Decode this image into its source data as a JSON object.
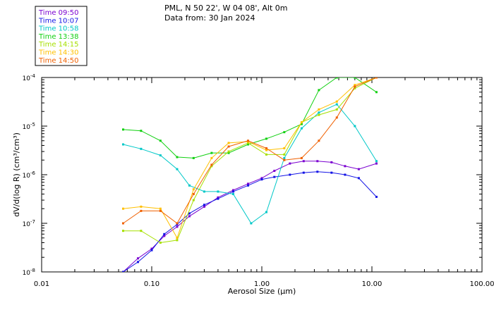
{
  "header": {
    "line1": "PML, N 50 22', W 04 08', Alt 0m",
    "line2": "Data from: 30 Jan 2024"
  },
  "chart_data": {
    "type": "line",
    "xlabel": "Aerosol Size (µm)",
    "ylabel": "dV/d(log R) (cm³/cm³)",
    "xscale": "log",
    "yscale": "log",
    "xlim": [
      0.01,
      100
    ],
    "ylim": [
      1e-08,
      0.0001
    ],
    "grid": false,
    "legend_position": "top-left",
    "x_ticks": [
      {
        "value": 0.01,
        "label": "0.01"
      },
      {
        "value": 0.1,
        "label": "0.10"
      },
      {
        "value": 1,
        "label": "1.00"
      },
      {
        "value": 10,
        "label": "10.00"
      },
      {
        "value": 100,
        "label": "100.00"
      }
    ],
    "y_ticks": [
      {
        "value": 1e-08,
        "base": "10",
        "exp": "-8"
      },
      {
        "value": 1e-07,
        "base": "10",
        "exp": "-7"
      },
      {
        "value": 1e-06,
        "base": "10",
        "exp": "-6"
      },
      {
        "value": 1e-05,
        "base": "10",
        "exp": "-5"
      },
      {
        "value": 0.0001,
        "base": "10",
        "exp": "-4"
      }
    ],
    "series": [
      {
        "name": "Time 09:50",
        "color": "#7a00d0",
        "points": [
          [
            0.055,
            1e-08
          ],
          [
            0.075,
            1.9e-08
          ],
          [
            0.1,
            3e-08
          ],
          [
            0.13,
            5.5e-08
          ],
          [
            0.17,
            8.5e-08
          ],
          [
            0.22,
            1.4e-07
          ],
          [
            0.3,
            2.2e-07
          ],
          [
            0.4,
            3.4e-07
          ],
          [
            0.55,
            4.8e-07
          ],
          [
            0.75,
            6.5e-07
          ],
          [
            1.0,
            8.5e-07
          ],
          [
            1.3,
            1.2e-06
          ],
          [
            1.8,
            1.7e-06
          ],
          [
            2.4,
            1.9e-06
          ],
          [
            3.2,
            1.9e-06
          ],
          [
            4.3,
            1.8e-06
          ],
          [
            5.7,
            1.5e-06
          ],
          [
            7.6,
            1.3e-06
          ],
          [
            11.0,
            1.7e-06
          ]
        ]
      },
      {
        "name": "Time 10:07",
        "color": "#1414e6",
        "points": [
          [
            0.055,
            1e-08
          ],
          [
            0.075,
            1.6e-08
          ],
          [
            0.1,
            2.8e-08
          ],
          [
            0.13,
            6e-08
          ],
          [
            0.17,
            9.5e-08
          ],
          [
            0.22,
            1.6e-07
          ],
          [
            0.3,
            2.4e-07
          ],
          [
            0.4,
            3.2e-07
          ],
          [
            0.55,
            4.5e-07
          ],
          [
            0.75,
            6e-07
          ],
          [
            1.0,
            8e-07
          ],
          [
            1.3,
            9e-07
          ],
          [
            1.8,
            1e-06
          ],
          [
            2.4,
            1.1e-06
          ],
          [
            3.2,
            1.15e-06
          ],
          [
            4.3,
            1.1e-06
          ],
          [
            5.7,
            1e-06
          ],
          [
            7.6,
            8.5e-07
          ],
          [
            11.0,
            3.5e-07
          ]
        ]
      },
      {
        "name": "Time 10:58",
        "color": "#00c8c8",
        "points": [
          [
            0.055,
            4.2e-06
          ],
          [
            0.08,
            3.4e-06
          ],
          [
            0.12,
            2.5e-06
          ],
          [
            0.17,
            1.3e-06
          ],
          [
            0.22,
            6e-07
          ],
          [
            0.3,
            4.5e-07
          ],
          [
            0.4,
            4.5e-07
          ],
          [
            0.55,
            4e-07
          ],
          [
            0.8,
            1e-07
          ],
          [
            1.1,
            1.7e-07
          ],
          [
            1.6,
            2.2e-06
          ],
          [
            2.3,
            9e-06
          ],
          [
            3.3,
            1.9e-05
          ],
          [
            4.8,
            2.8e-05
          ],
          [
            7.0,
            1e-05
          ],
          [
            11.0,
            1.9e-06
          ]
        ]
      },
      {
        "name": "Time 13:38",
        "color": "#10d010",
        "points": [
          [
            0.055,
            8.5e-06
          ],
          [
            0.08,
            8e-06
          ],
          [
            0.12,
            5e-06
          ],
          [
            0.17,
            2.3e-06
          ],
          [
            0.24,
            2.2e-06
          ],
          [
            0.35,
            2.8e-06
          ],
          [
            0.5,
            2.8e-06
          ],
          [
            0.75,
            4.2e-06
          ],
          [
            1.1,
            5.5e-06
          ],
          [
            1.6,
            7.5e-06
          ],
          [
            2.3,
            1.1e-05
          ],
          [
            3.3,
            5.5e-05
          ],
          [
            4.8,
            0.0001
          ],
          [
            7.0,
            0.0001
          ],
          [
            11.0,
            5e-05
          ]
        ]
      },
      {
        "name": "Time 14:15",
        "color": "#a6e000",
        "points": [
          [
            0.055,
            7e-08
          ],
          [
            0.08,
            7e-08
          ],
          [
            0.12,
            4e-08
          ],
          [
            0.17,
            4.5e-08
          ],
          [
            0.24,
            3e-07
          ],
          [
            0.35,
            1.5e-06
          ],
          [
            0.5,
            3e-06
          ],
          [
            0.75,
            4.5e-06
          ],
          [
            1.1,
            2.6e-06
          ],
          [
            1.6,
            2.6e-06
          ],
          [
            2.3,
            1.2e-05
          ],
          [
            3.3,
            1.7e-05
          ],
          [
            4.8,
            2.2e-05
          ],
          [
            7.0,
            6e-05
          ],
          [
            11.0,
            0.0001
          ]
        ]
      },
      {
        "name": "Time 14:30",
        "color": "#ffc000",
        "points": [
          [
            0.055,
            2e-07
          ],
          [
            0.08,
            2.2e-07
          ],
          [
            0.12,
            2e-07
          ],
          [
            0.17,
            5e-08
          ],
          [
            0.24,
            5e-07
          ],
          [
            0.35,
            2.2e-06
          ],
          [
            0.5,
            4.5e-06
          ],
          [
            0.75,
            4.8e-06
          ],
          [
            1.1,
            3.2e-06
          ],
          [
            1.6,
            3.5e-06
          ],
          [
            2.3,
            1.2e-05
          ],
          [
            3.3,
            2.2e-05
          ],
          [
            4.8,
            3.2e-05
          ],
          [
            7.0,
            7e-05
          ],
          [
            11.0,
            0.0001
          ]
        ]
      },
      {
        "name": "Time 14:50",
        "color": "#f06000",
        "points": [
          [
            0.055,
            1e-07
          ],
          [
            0.08,
            1.8e-07
          ],
          [
            0.12,
            1.8e-07
          ],
          [
            0.17,
            1e-07
          ],
          [
            0.24,
            4e-07
          ],
          [
            0.35,
            1.6e-06
          ],
          [
            0.5,
            3.8e-06
          ],
          [
            0.75,
            5e-06
          ],
          [
            1.1,
            3.5e-06
          ],
          [
            1.6,
            2e-06
          ],
          [
            2.3,
            2.2e-06
          ],
          [
            3.3,
            5e-06
          ],
          [
            4.8,
            1.5e-05
          ],
          [
            7.0,
            6.5e-05
          ],
          [
            11.0,
            0.0001
          ]
        ]
      }
    ]
  }
}
